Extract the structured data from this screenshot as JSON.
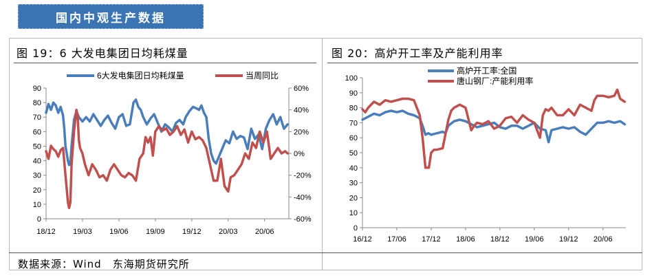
{
  "header": {
    "title": "国内中观生产数据"
  },
  "source": "数据来源：Wind　东海期货研究所",
  "colors": {
    "banner": "#3b74b3",
    "blue": "#4a7ebb",
    "red": "#c0504d"
  },
  "chart_data": [
    {
      "type": "line",
      "title": "图 19：6 大发电集团日均耗煤量",
      "x_tick_labels": [
        "18/12",
        "19/03",
        "19/06",
        "19/09",
        "19/12",
        "20/03",
        "20/06"
      ],
      "x_tick_positions": [
        0,
        3,
        6,
        9,
        12,
        15,
        18
      ],
      "x_range": [
        0,
        20
      ],
      "ylim_left": [
        0,
        90
      ],
      "yticks_left": [
        "0",
        "10",
        "20",
        "30",
        "40",
        "50",
        "60",
        "70",
        "80",
        "90"
      ],
      "ylim_right": [
        -60,
        60
      ],
      "yticks_right": [
        "-60%",
        "-40%",
        "-20%",
        "0%",
        "20%",
        "40%",
        "60%"
      ],
      "series": [
        {
          "name": "6大发电集团日均耗煤量",
          "axis": "left",
          "color": "#4a7ebb",
          "x": [
            0.0,
            0.2,
            0.4,
            0.6,
            0.8,
            1.0,
            1.2,
            1.4,
            1.5,
            1.6,
            1.8,
            1.9,
            2.0,
            2.1,
            2.3,
            2.5,
            2.7,
            3.0,
            3.3,
            3.6,
            3.9,
            4.2,
            4.5,
            4.8,
            5.1,
            5.4,
            5.7,
            6.0,
            6.3,
            6.6,
            6.9,
            7.2,
            7.4,
            7.6,
            7.8,
            8.0,
            8.3,
            8.6,
            8.9,
            9.2,
            9.5,
            9.8,
            10.1,
            10.4,
            10.7,
            11.0,
            11.3,
            11.5,
            11.8,
            12.1,
            12.4,
            12.6,
            12.8,
            13.0,
            13.2,
            13.4,
            13.6,
            13.8,
            14.0,
            14.2,
            14.5,
            14.8,
            15.1,
            15.4,
            15.7,
            16.0,
            16.3,
            16.6,
            16.9,
            17.2,
            17.5,
            17.8,
            18.1,
            18.4,
            18.7,
            19.0,
            19.3,
            19.6,
            19.9
          ],
          "values": [
            73,
            79,
            75,
            80,
            78,
            73,
            77,
            71,
            62,
            50,
            40,
            37,
            38,
            50,
            68,
            74,
            70,
            67,
            70,
            67,
            72,
            68,
            64,
            68,
            71,
            66,
            62,
            70,
            72,
            64,
            65,
            80,
            82,
            77,
            75,
            70,
            65,
            69,
            72,
            66,
            60,
            65,
            63,
            60,
            66,
            68,
            65,
            70,
            74,
            77,
            76,
            75,
            78,
            73,
            70,
            55,
            45,
            40,
            38,
            42,
            48,
            54,
            52,
            60,
            55,
            57,
            56,
            48,
            62,
            55,
            58,
            48,
            62,
            68,
            72,
            65,
            70,
            62,
            65
          ]
        },
        {
          "name": "当周同比",
          "axis": "right",
          "color": "#c0504d",
          "x": [
            0.0,
            0.2,
            0.4,
            0.6,
            0.8,
            1.0,
            1.2,
            1.4,
            1.6,
            1.8,
            1.9,
            2.0,
            2.1,
            2.3,
            2.5,
            2.6,
            2.7,
            2.8,
            3.0,
            3.2,
            3.5,
            3.8,
            4.1,
            4.4,
            4.7,
            5.0,
            5.3,
            5.6,
            5.9,
            6.2,
            6.5,
            6.8,
            7.1,
            7.4,
            7.7,
            8.0,
            8.2,
            8.4,
            8.6,
            8.8,
            9.0,
            9.3,
            9.6,
            9.9,
            10.2,
            10.5,
            10.8,
            11.1,
            11.4,
            11.7,
            12.0,
            12.3,
            12.6,
            12.9,
            13.2,
            13.5,
            13.8,
            14.1,
            14.4,
            14.7,
            15.0,
            15.2,
            15.5,
            15.8,
            16.1,
            16.4,
            16.7,
            17.0,
            17.3,
            17.6,
            17.9,
            18.2,
            18.5,
            18.8,
            19.1,
            19.4,
            19.7,
            19.9
          ],
          "values": [
            2,
            -5,
            7,
            4,
            2,
            -3,
            3,
            5,
            -20,
            -45,
            -50,
            -45,
            -10,
            20,
            40,
            35,
            12,
            5,
            0,
            -10,
            -20,
            -10,
            -15,
            -22,
            -20,
            -25,
            -15,
            -10,
            -15,
            -20,
            -22,
            -18,
            -20,
            -25,
            -5,
            0,
            15,
            10,
            15,
            -2,
            20,
            25,
            21,
            23,
            17,
            20,
            25,
            17,
            22,
            10,
            20,
            13,
            15,
            12,
            5,
            -10,
            -25,
            -25,
            -5,
            -30,
            -35,
            -22,
            -20,
            -15,
            -10,
            0,
            -5,
            10,
            5,
            20,
            10,
            20,
            -5,
            0,
            5,
            0,
            2,
            0
          ]
        }
      ]
    },
    {
      "type": "line",
      "title": "图 20：高炉开工率及产能利用率",
      "x_tick_labels": [
        "16/12",
        "17/06",
        "17/12",
        "18/06",
        "18/12",
        "19/06",
        "19/12",
        "20/06"
      ],
      "x_tick_positions": [
        0,
        6,
        12,
        18,
        24,
        30,
        36,
        42
      ],
      "x_range": [
        0,
        46
      ],
      "ylim": [
        0,
        100
      ],
      "yticks": [
        "0",
        "10",
        "20",
        "30",
        "40",
        "50",
        "60",
        "70",
        "80",
        "90",
        "100"
      ],
      "series": [
        {
          "name": "高炉开工率:全国",
          "color": "#4a7ebb",
          "x": [
            0.0,
            1.0,
            2.0,
            3.0,
            4.0,
            5.0,
            6.0,
            7.0,
            8.0,
            9.0,
            10.0,
            10.5,
            11.0,
            11.5,
            12.0,
            13.0,
            14.0,
            14.5,
            15.0,
            16.0,
            17.0,
            18.0,
            19.0,
            20.0,
            21.0,
            22.0,
            23.0,
            24.0,
            25.0,
            26.0,
            27.0,
            28.0,
            29.0,
            30.0,
            31.0,
            32.0,
            32.5,
            33.0,
            34.0,
            35.0,
            36.0,
            37.0,
            38.0,
            39.0,
            40.0,
            41.0,
            42.0,
            43.0,
            44.0,
            45.0,
            45.8
          ],
          "values": [
            72,
            74,
            76,
            75,
            77,
            78,
            77,
            78,
            76,
            75,
            73,
            68,
            62,
            63,
            62,
            63,
            64,
            63,
            68,
            71,
            72,
            71,
            69,
            67,
            68,
            69,
            70,
            67,
            66,
            68,
            68,
            66,
            68,
            70,
            66,
            65,
            57,
            65,
            66,
            67,
            66,
            67,
            64,
            62,
            66,
            70,
            70,
            71,
            70,
            71,
            69
          ]
        },
        {
          "name": "唐山钢厂:产能利用率",
          "color": "#c0504d",
          "x": [
            0.0,
            0.5,
            1.0,
            2.0,
            3.0,
            4.0,
            5.0,
            6.0,
            7.0,
            8.0,
            9.0,
            10.0,
            10.5,
            11.0,
            11.3,
            11.6,
            12.0,
            12.5,
            13.0,
            14.0,
            15.0,
            15.5,
            16.0,
            17.0,
            18.0,
            19.0,
            19.5,
            20.0,
            21.0,
            22.0,
            23.0,
            24.0,
            25.0,
            26.0,
            27.0,
            28.0,
            29.0,
            30.0,
            31.0,
            31.5,
            32.0,
            32.5,
            33.0,
            34.0,
            35.0,
            36.0,
            37.0,
            38.0,
            39.0,
            40.0,
            40.5,
            41.0,
            42.0,
            43.0,
            44.0,
            44.5,
            45.0,
            45.8
          ],
          "values": [
            79,
            77,
            80,
            84,
            82,
            85,
            84,
            85,
            86,
            86,
            85,
            75,
            60,
            40,
            40,
            40,
            50,
            52,
            52,
            53,
            72,
            78,
            80,
            82,
            80,
            65,
            68,
            70,
            69,
            71,
            66,
            68,
            73,
            74,
            70,
            75,
            72,
            70,
            60,
            75,
            79,
            78,
            80,
            75,
            75,
            79,
            75,
            82,
            80,
            78,
            85,
            88,
            88,
            87,
            88,
            92,
            86,
            84
          ]
        }
      ]
    }
  ]
}
